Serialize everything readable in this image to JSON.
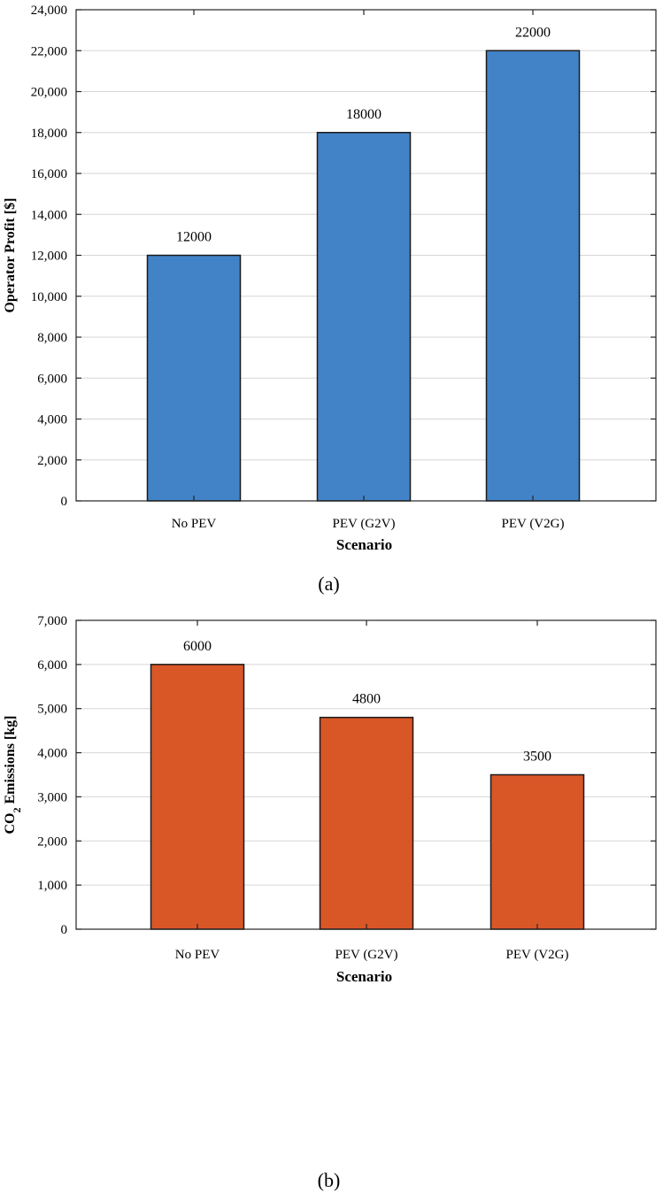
{
  "chart_data": [
    {
      "type": "bar",
      "panel_label": "(a)",
      "categories": [
        "No PEV",
        "PEV (G2V)",
        "PEV (V2G)"
      ],
      "values": [
        12000,
        18000,
        22000
      ],
      "data_labels": [
        "12000",
        "18000",
        "22000"
      ],
      "xlabel": "Scenario",
      "ylabel": "Operator Profit [$]",
      "ylim": [
        0,
        24000
      ],
      "yticks": [
        0,
        2000,
        4000,
        6000,
        8000,
        10000,
        12000,
        14000,
        16000,
        18000,
        20000,
        22000,
        24000
      ],
      "ytick_labels": [
        "0",
        "2,000",
        "4,000",
        "6,000",
        "8,000",
        "10,000",
        "12,000",
        "14,000",
        "16,000",
        "18,000",
        "20,000",
        "22,000",
        "24,000"
      ],
      "grid": true,
      "color": "#4283c7"
    },
    {
      "type": "bar",
      "panel_label": "(b)",
      "categories": [
        "No PEV",
        "PEV (G2V)",
        "PEV (V2G)"
      ],
      "values": [
        6000,
        4800,
        3500
      ],
      "data_labels": [
        "6000",
        "4800",
        "3500"
      ],
      "xlabel": "Scenario",
      "ylabel_prefix": "CO",
      "ylabel_sub": "2",
      "ylabel_suffix": " Emissions [kg]",
      "ylim": [
        0,
        7000
      ],
      "yticks": [
        0,
        1000,
        2000,
        3000,
        4000,
        5000,
        6000,
        7000
      ],
      "ytick_labels": [
        "0",
        "1,000",
        "2,000",
        "3,000",
        "4,000",
        "5,000",
        "6,000",
        "7,000"
      ],
      "grid": true,
      "color": "#d95627"
    }
  ]
}
